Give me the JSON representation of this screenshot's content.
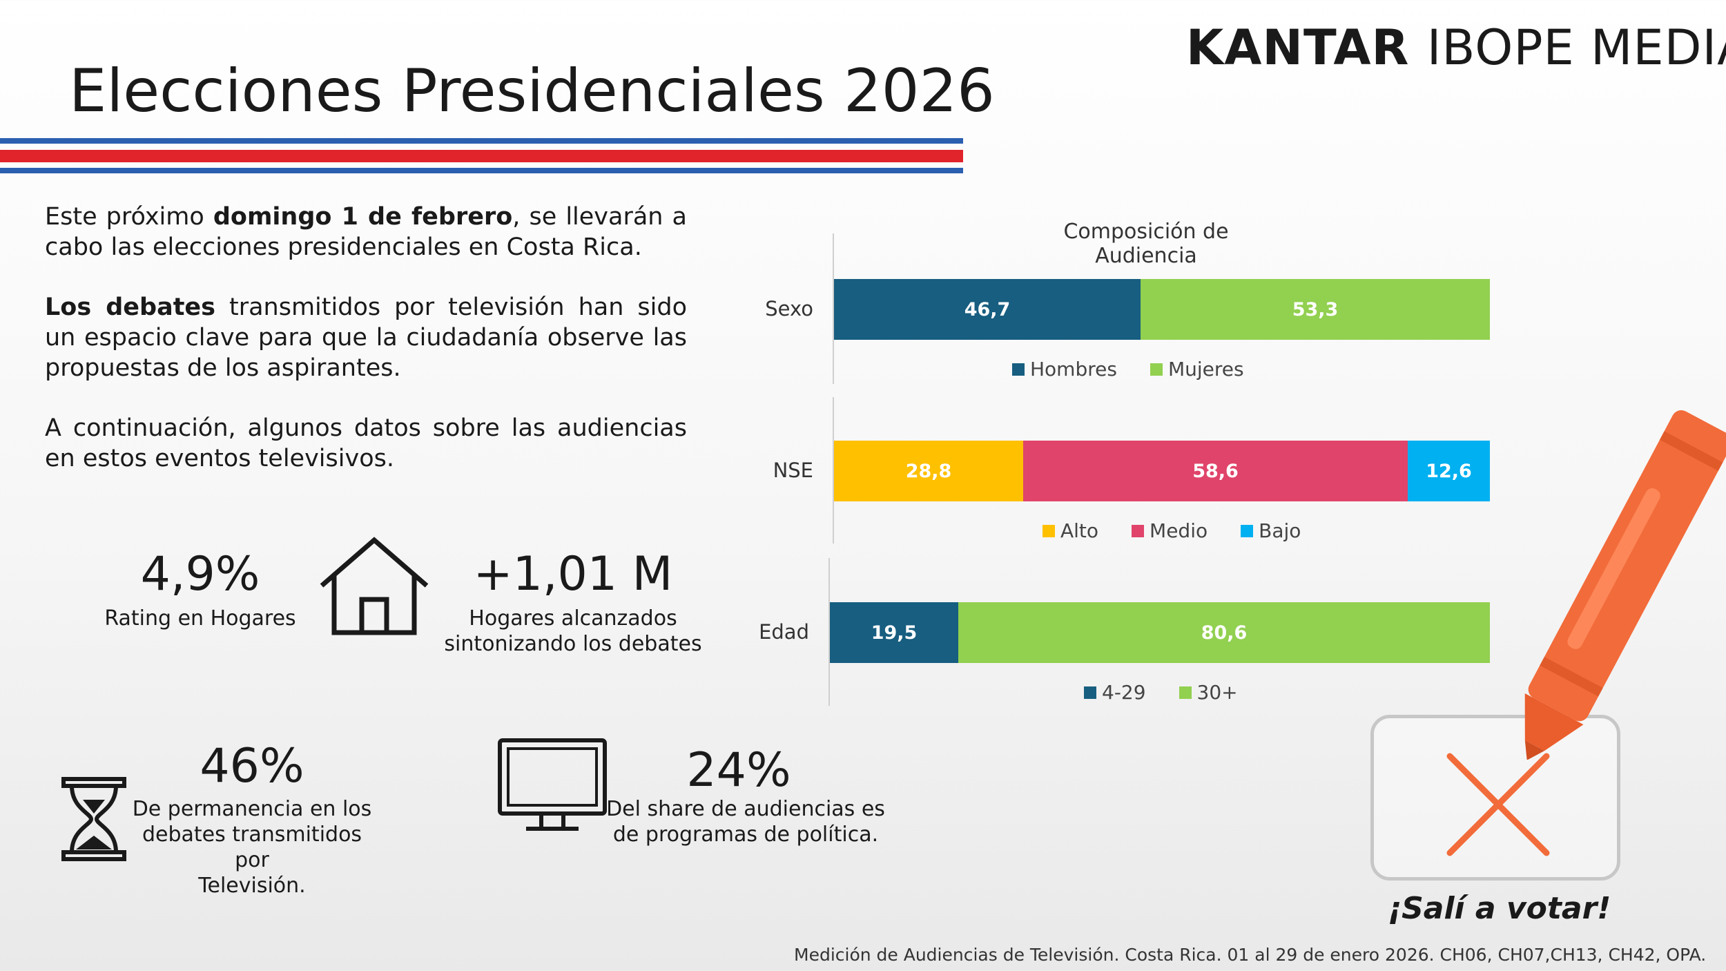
{
  "brand": {
    "logo_part1": "KANTAR",
    "logo_part2": "IBOPE MEDIA"
  },
  "title": "Elecciones Presidenciales 2026",
  "colors": {
    "stripe_blue": "#2b5fb0",
    "stripe_red": "#e1232b",
    "dark_blue": "#175e80",
    "green": "#92d050",
    "yellow": "#ffc000",
    "pink": "#e0446a",
    "light_blue": "#00b0f0",
    "crayon": "#f26b3a"
  },
  "intro": {
    "p1_pre": "Este próximo ",
    "p1_bold": "domingo 1 de febrero",
    "p1_post": ", se llevarán a cabo las elecciones presidenciales en Costa Rica.",
    "p2_bold": "Los debates",
    "p2_post": " transmitidos por televisión han sido un espacio clave para que la ciudadanía observe las propuestas de los aspirantes.",
    "p3": "A continuación, algunos datos sobre las audiencias en estos eventos televisivos."
  },
  "stats": {
    "rating": {
      "value": "4,9%",
      "label": "Rating en Hogares"
    },
    "reach": {
      "value": "+1,01 M",
      "label_line1": "Hogares alcanzados",
      "label_line2": "sintonizando los debates"
    },
    "permanence": {
      "value": "46%",
      "label_line1": "De permanencia en los",
      "label_line2": "debates transmitidos por",
      "label_line3": "Televisión."
    },
    "share": {
      "value": "24%",
      "label_line1": "Del share de audiencias es",
      "label_line2": "de programas de política."
    }
  },
  "icons": {
    "house": "house-icon",
    "hourglass": "hourglass-icon",
    "tv": "tv-monitor-icon",
    "crayon": "crayon-icon",
    "cross": "cross-mark-icon"
  },
  "chart_data": {
    "type": "bar",
    "stacked": true,
    "orientation": "horizontal",
    "title": "Composición de Audiencia",
    "groups": [
      {
        "category": "Sexo",
        "series": [
          {
            "name": "Hombres",
            "value": 46.7,
            "label": "46,7",
            "color": "#175e80"
          },
          {
            "name": "Mujeres",
            "value": 53.3,
            "label": "53,3",
            "color": "#92d050"
          }
        ]
      },
      {
        "category": "NSE",
        "series": [
          {
            "name": "Alto",
            "value": 28.8,
            "label": "28,8",
            "color": "#ffc000"
          },
          {
            "name": "Medio",
            "value": 58.6,
            "label": "58,6",
            "color": "#e0446a"
          },
          {
            "name": "Bajo",
            "value": 12.6,
            "label": "12,6",
            "color": "#00b0f0"
          }
        ]
      },
      {
        "category": "Edad",
        "series": [
          {
            "name": "4-29",
            "value": 19.5,
            "label": "19,5",
            "color": "#175e80"
          },
          {
            "name": "30+",
            "value": 80.6,
            "label": "80,6",
            "color": "#92d050"
          }
        ]
      }
    ],
    "legend_placement": "below each bar",
    "grid": false
  },
  "cta": "¡Salí a votar!",
  "footer": "Medición de Audiencias de Televisión. Costa Rica. 01 al 29 de enero 2026. CH06, CH07,CH13, CH42, OPA."
}
